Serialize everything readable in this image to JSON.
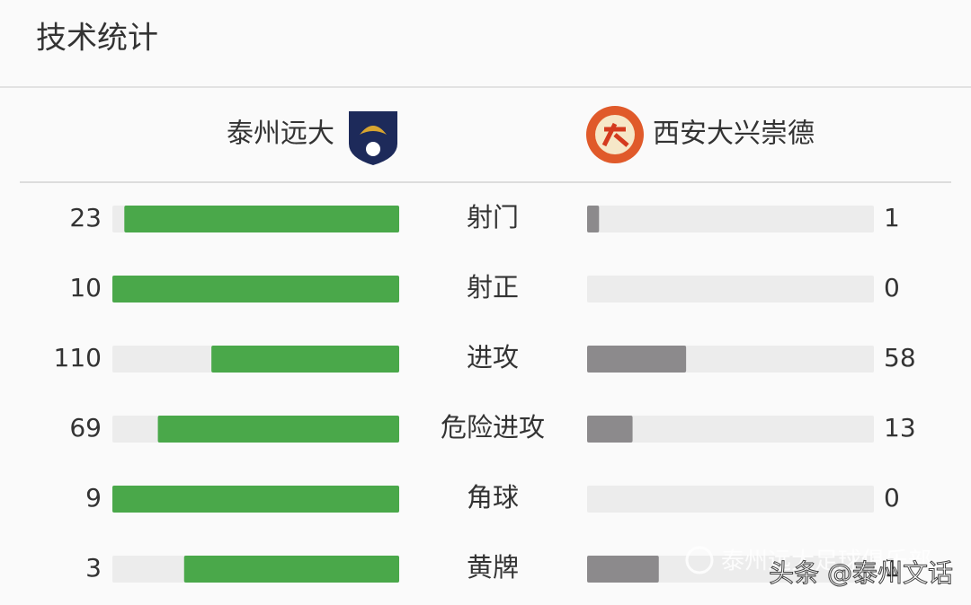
{
  "header": {
    "title": "技术统计"
  },
  "teams": {
    "home": "泰州远大",
    "away": "西安大兴崇德"
  },
  "stats": [
    {
      "label": "射门",
      "home": 23,
      "away": 1
    },
    {
      "label": "射正",
      "home": 10,
      "away": 0
    },
    {
      "label": "进攻",
      "home": 110,
      "away": 58
    },
    {
      "label": "危险进攻",
      "home": 69,
      "away": 13
    },
    {
      "label": "角球",
      "home": 9,
      "away": 0
    },
    {
      "label": "黄牌",
      "home": 3,
      "away": 1
    }
  ],
  "colors": {
    "home": "#4aa84a",
    "away": "#8c8a8c",
    "track": "#ececec"
  },
  "watermark": {
    "account": "泰州远大足球俱乐部",
    "source": "头条 @泰州文话"
  }
}
